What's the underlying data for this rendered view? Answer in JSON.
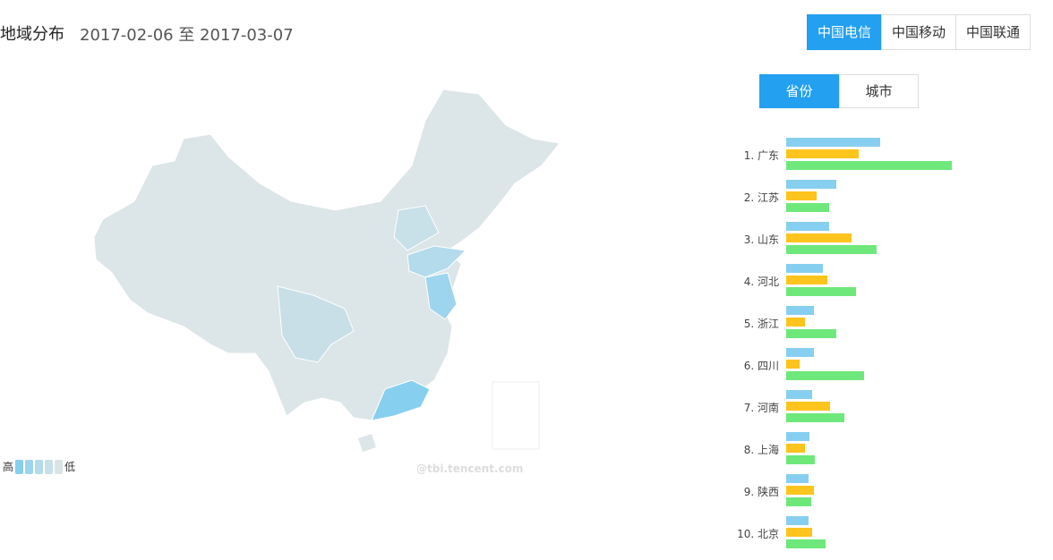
{
  "header": {
    "title": "地域分布",
    "date_range": "2017-02-06 至 2017-03-07"
  },
  "carriers": [
    {
      "label": "中国电信",
      "active": true
    },
    {
      "label": "中国移动",
      "active": false
    },
    {
      "label": "中国联通",
      "active": false
    }
  ],
  "tabs": [
    {
      "label": "省份",
      "active": true
    },
    {
      "label": "城市",
      "active": false
    }
  ],
  "legend": {
    "high": "高",
    "low": "低",
    "colors": [
      "#87cfef",
      "#9dd4ee",
      "#b3dbeb",
      "#c8e0e8",
      "#d9e4e6"
    ]
  },
  "watermark": "@tbi.tencent.com",
  "colors": {
    "accent": "#23a0f0",
    "map_base": "#dce5e7"
  },
  "chart_data": {
    "type": "bar",
    "orientation": "horizontal",
    "categories": [
      "1. 广东",
      "2. 江苏",
      "3. 山东",
      "4. 河北",
      "5. 浙江",
      "6. 四川",
      "7. 河南",
      "8. 上海",
      "9. 陕西",
      "10. 北京"
    ],
    "series": [
      {
        "color": "#87cff0",
        "values": [
          105,
          56,
          48,
          41,
          31,
          31,
          29,
          26,
          25,
          25
        ]
      },
      {
        "color": "#fcc41c",
        "values": [
          81,
          34,
          73,
          46,
          21,
          15,
          49,
          21,
          31,
          29
        ]
      },
      {
        "color": "#6ee87b",
        "values": [
          185,
          48,
          101,
          78,
          56,
          87,
          65,
          32,
          28,
          44
        ]
      }
    ]
  }
}
